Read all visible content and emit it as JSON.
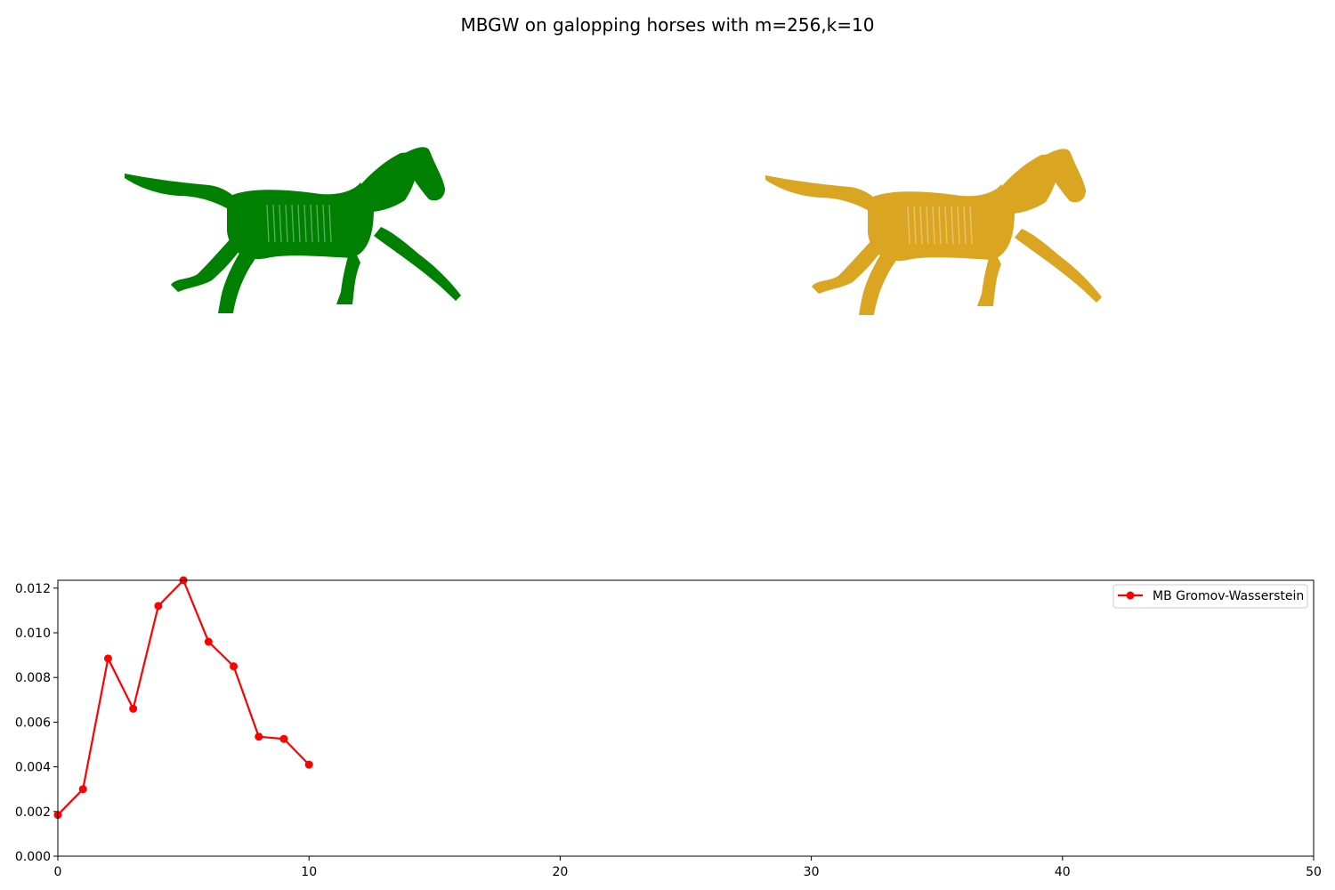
{
  "figure": {
    "title": "MBGW on galopping horses with m=256,k=10"
  },
  "horses": {
    "left_color": "#008000",
    "right_color": "#DAA520"
  },
  "chart_data": {
    "type": "line",
    "title": "",
    "xlabel": "",
    "ylabel": "",
    "xlim": [
      0,
      50
    ],
    "ylim": [
      0,
      0.01235
    ],
    "xticks": [
      "0",
      "10",
      "20",
      "30",
      "40",
      "50"
    ],
    "yticks": [
      "0.000",
      "0.002",
      "0.004",
      "0.006",
      "0.008",
      "0.010",
      "0.012"
    ],
    "grid": false,
    "legend": "top-right",
    "series": [
      {
        "name": "MB Gromov-Wasserstein",
        "color": "#ff0000",
        "marker": "circle",
        "x": [
          0,
          1,
          2,
          3,
          4,
          5,
          6,
          7,
          8,
          9,
          10
        ],
        "y": [
          0.00185,
          0.003,
          0.00885,
          0.0066,
          0.0112,
          0.01235,
          0.0096,
          0.0085,
          0.00535,
          0.00525,
          0.0041
        ]
      }
    ]
  }
}
